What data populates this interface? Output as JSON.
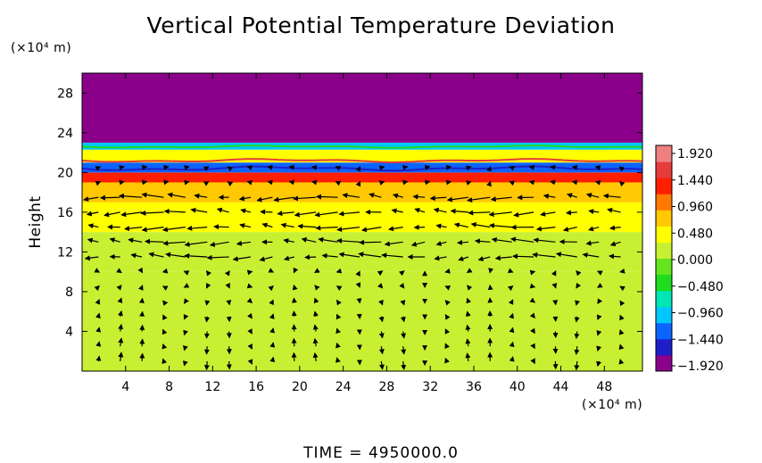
{
  "chart_data": {
    "type": "heatmap",
    "title": "Vertical Potential Temperature Deviation",
    "ylabel": "Height",
    "x_unit": "(×10⁴ m)",
    "y_unit": "(×10⁴ m)",
    "xlim": [
      0,
      51.5
    ],
    "ylim": [
      0,
      30
    ],
    "x_ticks": [
      4,
      8,
      12,
      16,
      20,
      24,
      28,
      32,
      36,
      40,
      44,
      48
    ],
    "y_ticks": [
      4,
      8,
      12,
      16,
      20,
      24,
      28
    ],
    "colorbar": {
      "ticks": [
        1.92,
        1.44,
        0.96,
        0.48,
        0.0,
        -0.48,
        -0.96,
        -1.44,
        -1.92
      ],
      "tick_labels": [
        "1.920",
        "1.440",
        "0.960",
        "0.480",
        "0.000",
        "−0.480",
        "−0.960",
        "−1.440",
        "−1.920"
      ],
      "range": [
        -1.92,
        1.92
      ],
      "colors": [
        "#8b008b",
        "#1e1ec8",
        "#0a64ff",
        "#00c8ff",
        "#00e6b4",
        "#1edc1e",
        "#64e61e",
        "#c8f032",
        "#ffff00",
        "#ffc800",
        "#ff7800",
        "#ff1e00",
        "#e63c3c",
        "#f08080"
      ]
    },
    "field_bands": [
      {
        "y_from": 0,
        "y_to": 10,
        "value": 0.0
      },
      {
        "y_from": 10,
        "y_to": 11.5,
        "value": 0.1
      },
      {
        "y_from": 11.5,
        "y_to": 14,
        "value": 0.25
      },
      {
        "y_from": 14,
        "y_to": 17,
        "value": 0.45
      },
      {
        "y_from": 17,
        "y_to": 19,
        "value": 0.75
      },
      {
        "y_from": 19,
        "y_to": 20,
        "value": 1.1
      },
      {
        "y_from": 20,
        "y_to": 21,
        "value": -1.2
      },
      {
        "y_from": 21,
        "y_to": 22.3,
        "value": 0.4
      },
      {
        "y_from": 22.3,
        "y_to": 23,
        "value": -0.9
      },
      {
        "y_from": 23,
        "y_to": 30,
        "value": -1.92
      }
    ],
    "vectors_note": "wind vectors overlaid; strongest leftward flow between heights 12 and 18",
    "time_label": "TIME  =  4950000.0"
  }
}
